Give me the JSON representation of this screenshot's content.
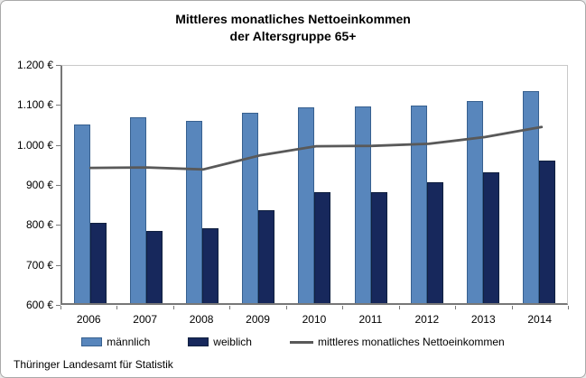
{
  "title": {
    "line1": "Mittleres monatliches Nettoeinkommen",
    "line2": "der Altersgruppe 65+"
  },
  "footer": {
    "source": "Thüringer Landesamt für Statistik"
  },
  "colors": {
    "maennlich_fill": "#5886bc",
    "maennlich_border": "#37608f",
    "weiblich_fill": "#17285c",
    "weiblich_border": "#10203f",
    "trend_line": "#595959",
    "axis": "#777777",
    "plot_border": "#c9c9c9"
  },
  "chart_data": {
    "type": "bar",
    "title": "Mittleres monatliches Nettoeinkommen der Altersgruppe 65+",
    "categories": [
      "2006",
      "2007",
      "2008",
      "2009",
      "2010",
      "2011",
      "2012",
      "2013",
      "2014"
    ],
    "series": [
      {
        "name": "männlich",
        "type": "bar",
        "color": "#5886bc",
        "values": [
          1047,
          1065,
          1056,
          1077,
          1090,
          1091,
          1093,
          1106,
          1130
        ]
      },
      {
        "name": "weiblich",
        "type": "bar",
        "color": "#17285c",
        "values": [
          801,
          780,
          788,
          833,
          877,
          877,
          902,
          928,
          957
        ]
      },
      {
        "name": "mittleres monatliches Nettoeinkommen",
        "type": "line",
        "color": "#595959",
        "values": [
          945,
          946,
          941,
          976,
          999,
          1000,
          1005,
          1022,
          1047
        ]
      }
    ],
    "xlabel": "",
    "ylabel": "",
    "ylim": [
      600,
      1200
    ],
    "ytick_step": 100,
    "y_tick_labels": [
      "1.200 €",
      "1.100 €",
      "1.000 €",
      "900 €",
      "800 €",
      "700 €",
      "600 €"
    ],
    "unit": "€",
    "grid": false,
    "legend_position": "bottom"
  }
}
